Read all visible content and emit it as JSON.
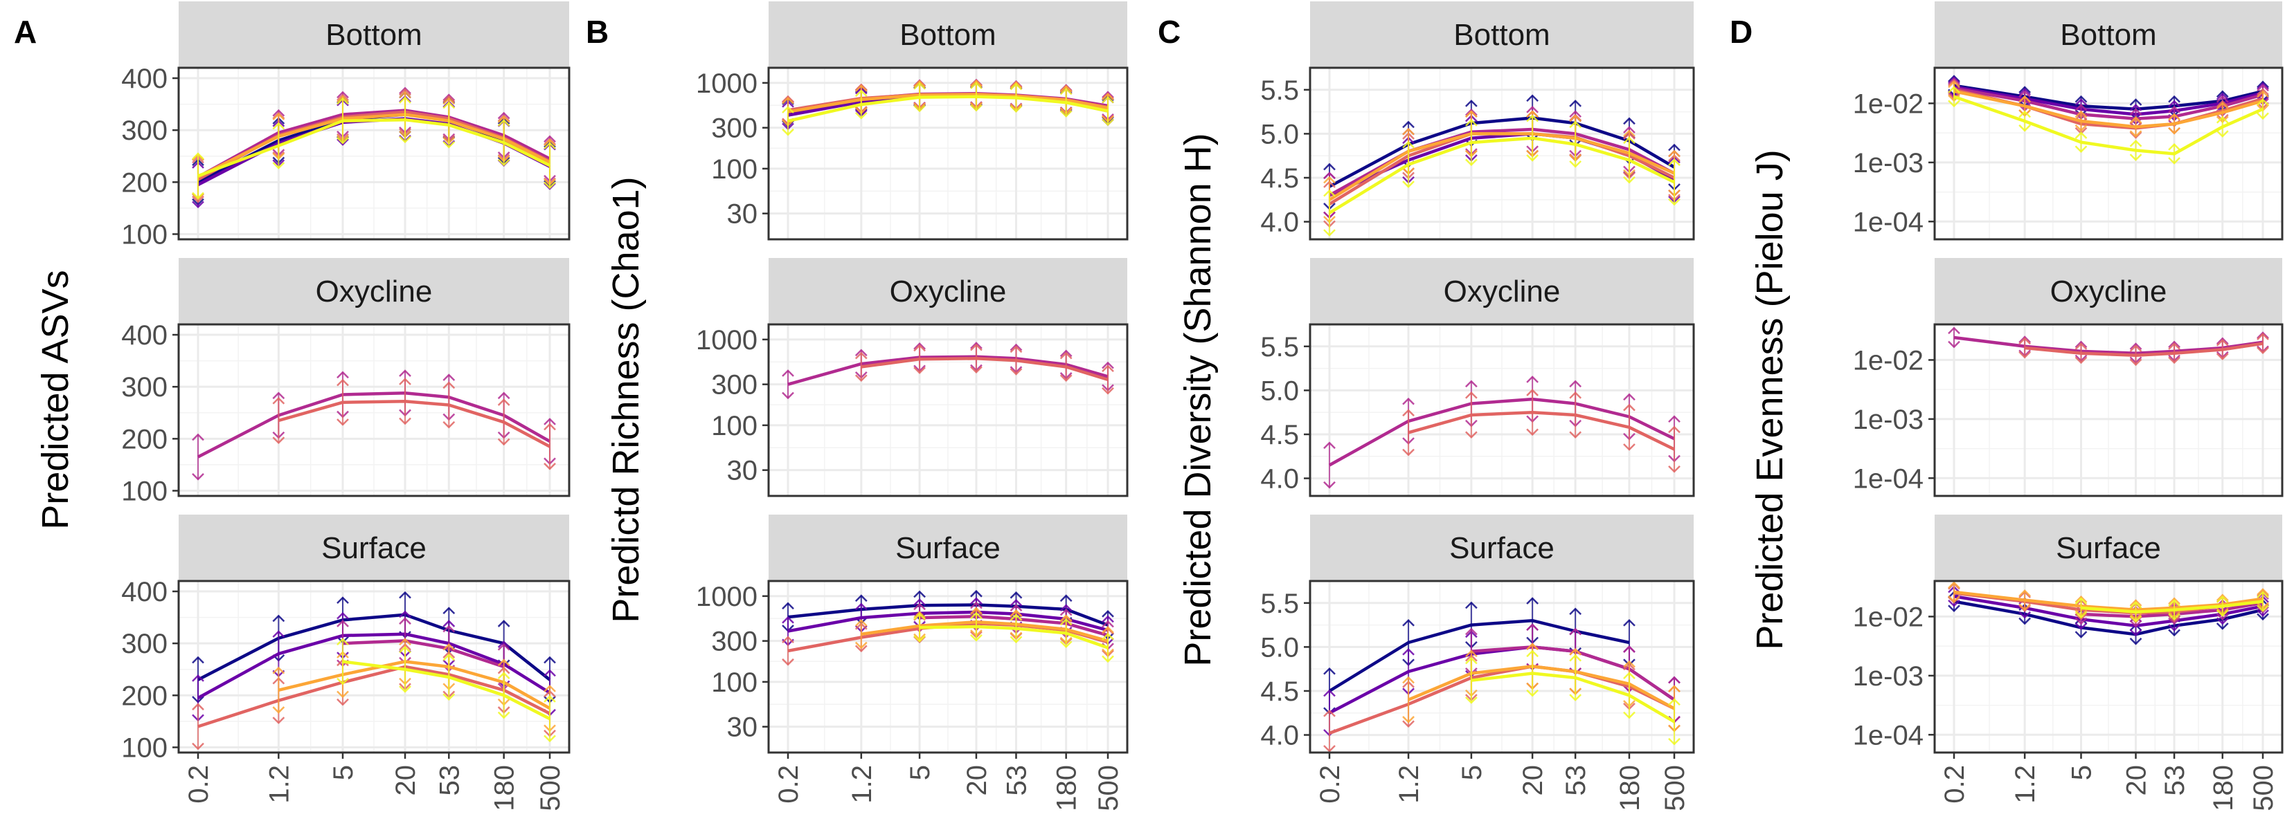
{
  "chart_data": {
    "type": "line",
    "x_ticks": [
      "0.2",
      "1.2",
      "5",
      "20",
      "53",
      "180",
      "500"
    ],
    "x": [
      0.2,
      1.2,
      5,
      20,
      53,
      180,
      500
    ],
    "x_scale": "log",
    "panel_labels": [
      "Bottom",
      "Oxycline",
      "Surface"
    ],
    "palette": [
      "#0d0887",
      "#6a00a8",
      "#b12a90",
      "#e16462",
      "#fca636",
      "#f0f921"
    ],
    "facets": [
      {
        "letter": "A",
        "ylabel": "Predicted  ASVs",
        "yscale": "linear",
        "ylim": [
          90,
          420
        ],
        "yticks": [
          100,
          200,
          300,
          400
        ],
        "ytick_labels": [
          "100",
          "200",
          "300",
          "400"
        ],
        "panels": [
          {
            "name": "Bottom",
            "series": [
              {
                "color": "#0d0887",
                "values": [
                  200,
                  280,
                  320,
                  330,
                  320,
                  280,
                  235
                ]
              },
              {
                "color": "#6a00a8",
                "values": [
                  195,
                  275,
                  315,
                  322,
                  312,
                  275,
                  230
                ]
              },
              {
                "color": "#b12a90",
                "values": [
                  210,
                  295,
                  330,
                  338,
                  325,
                  290,
                  245
                ]
              },
              {
                "color": "#e16462",
                "values": [
                  205,
                  290,
                  325,
                  335,
                  322,
                  285,
                  240
                ]
              },
              {
                "color": "#fca636",
                "values": [
                  210,
                  288,
                  322,
                  330,
                  318,
                  283,
                  238
                ]
              },
              {
                "color": "#f0f921",
                "values": [
                  212,
                  270,
                  318,
                  320,
                  310,
                  276,
                  232
                ]
              }
            ]
          },
          {
            "name": "Oxycline",
            "series": [
              {
                "color": "#b12a90",
                "values": [
                  165,
                  245,
                  285,
                  288,
                  280,
                  245,
                  195
                ]
              },
              {
                "color": "#e16462",
                "values": [
                  null,
                  235,
                  270,
                  272,
                  265,
                  232,
                  185
                ]
              }
            ]
          },
          {
            "name": "Surface",
            "series": [
              {
                "color": "#0d0887",
                "values": [
                  230,
                  310,
                  345,
                  355,
                  325,
                  300,
                  230
                ]
              },
              {
                "color": "#6a00a8",
                "values": [
                  195,
                  280,
                  315,
                  318,
                  300,
                  260,
                  205
                ]
              },
              {
                "color": "#b12a90",
                "values": [
                  null,
                  null,
                  300,
                  305,
                  290,
                  255,
                  null
                ]
              },
              {
                "color": "#e16462",
                "values": [
                  140,
                  190,
                  225,
                  255,
                  240,
                  210,
                  165
                ]
              },
              {
                "color": "#fca636",
                "values": [
                  null,
                  210,
                  240,
                  265,
                  255,
                  225,
                  175
                ]
              },
              {
                "color": "#f0f921",
                "values": [
                  null,
                  null,
                  265,
                  250,
                  235,
                  200,
                  155
                ]
              }
            ]
          }
        ]
      },
      {
        "letter": "B",
        "ylabel": "Predictd Richness (Chao1)",
        "yscale": "log",
        "ylim": [
          15,
          1500
        ],
        "yticks": [
          30,
          100,
          300,
          1000
        ],
        "ytick_labels": [
          "30",
          "100",
          "300",
          "1000"
        ],
        "panels": [
          {
            "name": "Bottom",
            "series": [
              {
                "color": "#0d0887",
                "values": [
                  450,
                  620,
                  700,
                  710,
                  690,
                  620,
                  500
                ]
              },
              {
                "color": "#6a00a8",
                "values": [
                  420,
                  600,
                  690,
                  700,
                  680,
                  600,
                  470
                ]
              },
              {
                "color": "#b12a90",
                "values": [
                  470,
                  650,
                  740,
                  750,
                  720,
                  650,
                  540
                ]
              },
              {
                "color": "#e16462",
                "values": [
                  480,
                  660,
                  730,
                  740,
                  710,
                  640,
                  520
                ]
              },
              {
                "color": "#fca636",
                "values": [
                  460,
                  640,
                  720,
                  730,
                  700,
                  630,
                  510
                ]
              },
              {
                "color": "#f0f921",
                "values": [
                  360,
                  560,
                  680,
                  690,
                  670,
                  590,
                  470
                ]
              }
            ]
          },
          {
            "name": "Oxycline",
            "series": [
              {
                "color": "#b12a90",
                "values": [
                  300,
                  520,
                  620,
                  630,
                  600,
                  510,
                  370
                ]
              },
              {
                "color": "#e16462",
                "values": [
                  null,
                  480,
                  590,
                  600,
                  570,
                  480,
                  340
                ]
              }
            ]
          },
          {
            "name": "Surface",
            "series": [
              {
                "color": "#0d0887",
                "values": [
                  570,
                  700,
                  780,
                  790,
                  760,
                  700,
                  460
                ]
              },
              {
                "color": "#6a00a8",
                "values": [
                  390,
                  560,
                  630,
                  650,
                  620,
                  540,
                  400
                ]
              },
              {
                "color": "#b12a90",
                "values": [
                  null,
                  null,
                  560,
                  580,
                  540,
                  480,
                  350
                ]
              },
              {
                "color": "#e16462",
                "values": [
                  230,
                  330,
                  420,
                  480,
                  460,
                  400,
                  290
                ]
              },
              {
                "color": "#fca636",
                "values": [
                  null,
                  360,
                  450,
                  500,
                  470,
                  410,
                  300
                ]
              },
              {
                "color": "#f0f921",
                "values": [
                  null,
                  null,
                  430,
                  440,
                  420,
                  370,
                  250
                ]
              }
            ]
          }
        ]
      },
      {
        "letter": "C",
        "ylabel": "Predicted Diversity (Shannon H)",
        "yscale": "linear",
        "ylim": [
          3.8,
          5.75
        ],
        "yticks": [
          4.0,
          4.5,
          5.0,
          5.5
        ],
        "ytick_labels": [
          "4.0",
          "4.5",
          "5.0",
          "5.5"
        ],
        "panels": [
          {
            "name": "Bottom",
            "series": [
              {
                "color": "#0d0887",
                "values": [
                  4.4,
                  4.88,
                  5.12,
                  5.18,
                  5.12,
                  4.92,
                  4.62
                ]
              },
              {
                "color": "#6a00a8",
                "values": [
                  4.3,
                  4.7,
                  4.95,
                  5.0,
                  4.95,
                  4.76,
                  4.48
                ]
              },
              {
                "color": "#b12a90",
                "values": [
                  4.3,
                  4.8,
                  5.02,
                  5.05,
                  5.0,
                  4.82,
                  4.55
                ]
              },
              {
                "color": "#e16462",
                "values": [
                  4.2,
                  4.75,
                  5.0,
                  5.0,
                  4.96,
                  4.75,
                  4.5
                ]
              },
              {
                "color": "#fca636",
                "values": [
                  4.25,
                  4.8,
                  5.0,
                  5.0,
                  4.95,
                  4.78,
                  4.55
                ]
              },
              {
                "color": "#f0f921",
                "values": [
                  4.1,
                  4.65,
                  4.9,
                  4.95,
                  4.88,
                  4.7,
                  4.45
                ]
              }
            ]
          },
          {
            "name": "Oxycline",
            "series": [
              {
                "color": "#b12a90",
                "values": [
                  4.15,
                  4.65,
                  4.85,
                  4.9,
                  4.85,
                  4.7,
                  4.45
                ]
              },
              {
                "color": "#e16462",
                "values": [
                  null,
                  4.52,
                  4.72,
                  4.75,
                  4.72,
                  4.58,
                  4.33
                ]
              }
            ]
          },
          {
            "name": "Surface",
            "series": [
              {
                "color": "#0d0887",
                "values": [
                  4.5,
                  5.05,
                  5.25,
                  5.3,
                  5.18,
                  5.05,
                  null
                ]
              },
              {
                "color": "#6a00a8",
                "values": [
                  4.25,
                  4.72,
                  4.92,
                  5.0,
                  4.95,
                  4.75,
                  4.4
                ]
              },
              {
                "color": "#b12a90",
                "values": [
                  null,
                  null,
                  4.95,
                  5.0,
                  4.95,
                  4.75,
                  4.4
                ]
              },
              {
                "color": "#e16462",
                "values": [
                  4.02,
                  4.35,
                  4.65,
                  4.78,
                  4.72,
                  4.55,
                  4.3
                ]
              },
              {
                "color": "#fca636",
                "values": [
                  null,
                  4.4,
                  4.7,
                  4.78,
                  4.72,
                  4.58,
                  4.3
                ]
              },
              {
                "color": "#f0f921",
                "values": [
                  null,
                  null,
                  4.62,
                  4.7,
                  4.65,
                  4.45,
                  4.15
                ]
              }
            ]
          }
        ]
      },
      {
        "letter": "D",
        "ylabel": "Predicted Evenness (Pielou J)",
        "yscale": "log",
        "ylim": [
          5e-05,
          0.04
        ],
        "yticks": [
          0.0001,
          0.001,
          0.01
        ],
        "ytick_labels": [
          "1e-04",
          "1e-03",
          "1e-02"
        ],
        "panels": [
          {
            "name": "Bottom",
            "series": [
              {
                "color": "#0d0887",
                "values": [
                  0.02,
                  0.013,
                  0.009,
                  0.008,
                  0.009,
                  0.011,
                  0.016
                ]
              },
              {
                "color": "#6a00a8",
                "values": [
                  0.019,
                  0.012,
                  0.008,
                  0.0065,
                  0.0075,
                  0.01,
                  0.015
                ]
              },
              {
                "color": "#b12a90",
                "values": [
                  0.018,
                  0.011,
                  0.0065,
                  0.0055,
                  0.006,
                  0.009,
                  0.014
                ]
              },
              {
                "color": "#e16462",
                "values": [
                  0.017,
                  0.009,
                  0.0045,
                  0.0038,
                  0.0045,
                  0.0075,
                  0.012
                ]
              },
              {
                "color": "#fca636",
                "values": [
                  0.016,
                  0.009,
                  0.005,
                  0.004,
                  0.0045,
                  0.007,
                  0.011
                ]
              },
              {
                "color": "#f0f921",
                "values": [
                  0.013,
                  0.005,
                  0.0022,
                  0.0016,
                  0.0014,
                  0.004,
                  0.008
                ]
              }
            ]
          },
          {
            "name": "Oxycline",
            "series": [
              {
                "color": "#b12a90",
                "values": [
                  0.024,
                  0.017,
                  0.014,
                  0.013,
                  0.014,
                  0.016,
                  0.02
                ]
              },
              {
                "color": "#e16462",
                "values": [
                  null,
                  0.016,
                  0.013,
                  0.012,
                  0.013,
                  0.015,
                  0.019
                ]
              }
            ]
          },
          {
            "name": "Surface",
            "series": [
              {
                "color": "#0d0887",
                "values": [
                  0.018,
                  0.011,
                  0.0065,
                  0.005,
                  0.007,
                  0.009,
                  0.013
                ]
              },
              {
                "color": "#6a00a8",
                "values": [
                  0.022,
                  0.014,
                  0.009,
                  0.007,
                  0.0085,
                  0.011,
                  0.015
                ]
              },
              {
                "color": "#b12a90",
                "values": [
                  null,
                  null,
                  0.011,
                  0.01,
                  0.011,
                  0.013,
                  0.017
                ]
              },
              {
                "color": "#e16462",
                "values": [
                  0.025,
                  0.018,
                  0.013,
                  0.0115,
                  0.012,
                  0.015,
                  0.019
                ]
              },
              {
                "color": "#fca636",
                "values": [
                  0.026,
                  0.019,
                  0.015,
                  0.013,
                  0.014,
                  0.016,
                  0.02
                ]
              },
              {
                "color": "#f0f921",
                "values": [
                  null,
                  null,
                  0.014,
                  0.012,
                  0.013,
                  0.015,
                  0.018
                ]
              }
            ]
          }
        ]
      }
    ]
  }
}
